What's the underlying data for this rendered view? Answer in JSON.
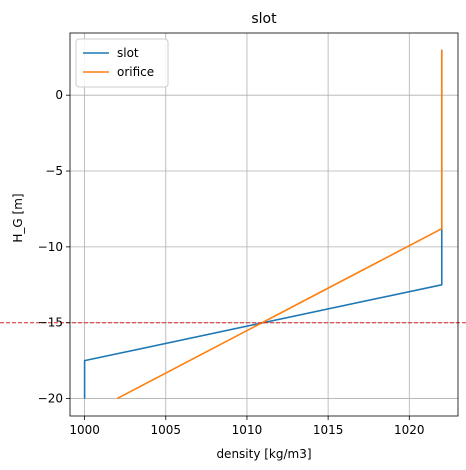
{
  "chart_data": {
    "type": "line",
    "title": "slot",
    "xlabel": "density [kg/m3]",
    "ylabel": "H_G [m]",
    "xlim": [
      999.1,
      1023.0
    ],
    "ylim": [
      -21.15,
      4.1
    ],
    "xticks": [
      1000,
      1005,
      1010,
      1015,
      1020
    ],
    "yticks": [
      -20,
      -15,
      -10,
      -5,
      0
    ],
    "ytick_labels": [
      "−20",
      "−15",
      "−10",
      "−5",
      "0"
    ],
    "grid": true,
    "legend_position": "top-left",
    "series": [
      {
        "name": "slot",
        "color": "#1f77b4",
        "points": [
          [
            1000,
            -20
          ],
          [
            1000,
            -17.5
          ],
          [
            1022,
            -12.5
          ],
          [
            1022,
            3
          ]
        ]
      },
      {
        "name": "orifice",
        "color": "#ff7f0e",
        "points": [
          [
            1002,
            -20
          ],
          [
            1022,
            -8.8
          ],
          [
            1022,
            3
          ]
        ]
      }
    ],
    "reference_lines": [
      {
        "axis": "y",
        "value": -15,
        "color": "#d62728",
        "style": "dashed"
      }
    ]
  }
}
